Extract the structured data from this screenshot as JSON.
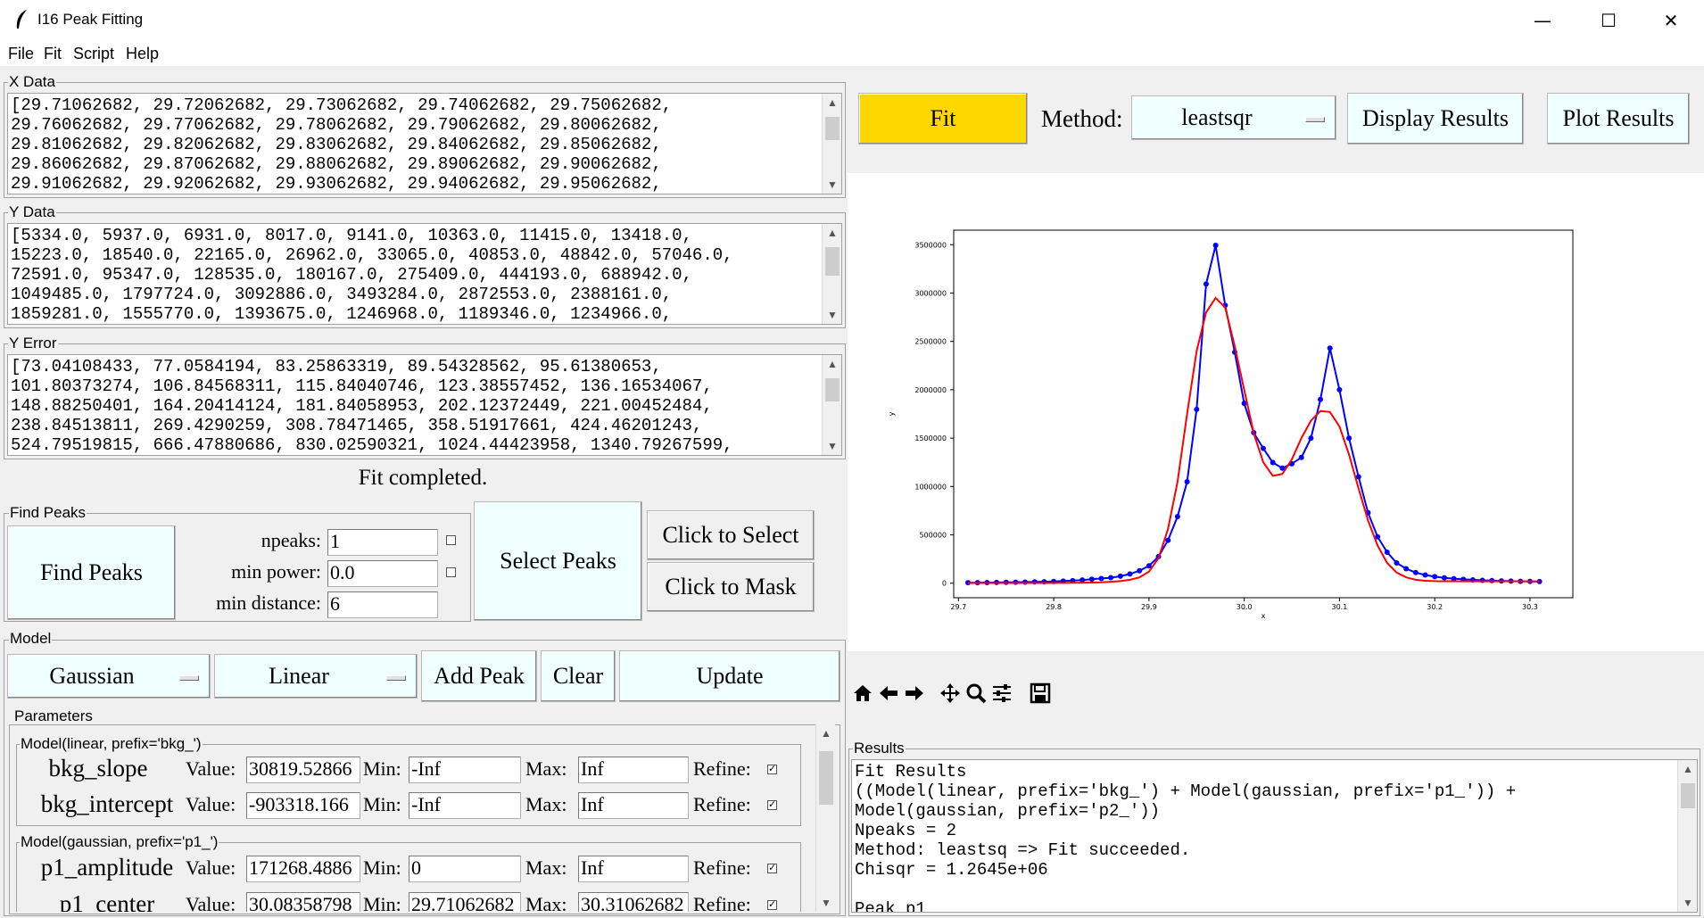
{
  "window": {
    "title": "I16 Peak Fitting",
    "minimize": "—",
    "maximize": "☐",
    "close": "✕"
  },
  "menu": {
    "file": "File",
    "fit": "Fit",
    "script": "Script",
    "help": "Help"
  },
  "xdata": {
    "label": "X Data",
    "text": "[29.71062682, 29.72062682, 29.73062682, 29.74062682, 29.75062682,\n29.76062682, 29.77062682, 29.78062682, 29.79062682, 29.80062682,\n29.81062682, 29.82062682, 29.83062682, 29.84062682, 29.85062682,\n29.86062682, 29.87062682, 29.88062682, 29.89062682, 29.90062682,\n29.91062682, 29.92062682, 29.93062682, 29.94062682, 29.95062682,"
  },
  "ydata": {
    "label": "Y Data",
    "text": "[5334.0, 5937.0, 6931.0, 8017.0, 9141.0, 10363.0, 11415.0, 13418.0,\n15223.0, 18540.0, 22165.0, 26962.0, 33065.0, 40853.0, 48842.0, 57046.0,\n72591.0, 95347.0, 128535.0, 180167.0, 275409.0, 444193.0, 688942.0,\n1049485.0, 1797724.0, 3092886.0, 3493284.0, 2872553.0, 2388161.0,\n1859281.0, 1555770.0, 1393675.0, 1246968.0, 1189346.0, 1234966.0,"
  },
  "yerror": {
    "label": "Y Error",
    "text": "[73.04108433, 77.0584194, 83.25863319, 89.54328562, 95.61380653,\n101.80373274, 106.84568311, 115.84040746, 123.38557452, 136.16534067,\n148.88250401, 164.20414124, 181.84058953, 202.12372449, 221.00452484,\n238.84513811, 269.4290259, 308.78471465, 358.51917661, 424.46201243,\n524.79519815, 666.47880686, 830.02590321, 1024.44423958, 1340.79267599,"
  },
  "status": "Fit completed.",
  "find_peaks": {
    "label": "Find Peaks",
    "button": "Find Peaks",
    "npeaks_label": "npeaks:",
    "npeaks": "1",
    "min_power_label": "min power:",
    "min_power": "0.0",
    "min_distance_label": "min distance:",
    "min_distance": "6",
    "select_peaks": "Select Peaks",
    "click_select": "Click to Select",
    "click_mask": "Click to Mask"
  },
  "model": {
    "label": "Model",
    "peak_model": "Gaussian",
    "bkg_model": "Linear",
    "add_peak": "Add Peak",
    "clear": "Clear",
    "update": "Update"
  },
  "parameters": {
    "label": "Parameters",
    "value_label": "Value:",
    "min_label": "Min:",
    "max_label": "Max:",
    "refine_label": "Refine:",
    "groups": [
      {
        "title": "Model(linear, prefix='bkg_')",
        "rows": [
          {
            "name": "bkg_slope",
            "value": "30819.52866",
            "min": "-Inf",
            "max": "Inf"
          },
          {
            "name": "bkg_intercept",
            "value": "-903318.166",
            "min": "-Inf",
            "max": "Inf"
          }
        ]
      },
      {
        "title": "Model(gaussian, prefix='p1_')",
        "rows": [
          {
            "name": "p1_amplitude",
            "value": "171268.4886",
            "min": "0",
            "max": "Inf"
          },
          {
            "name": "p1_center",
            "value": "30.08358798",
            "min": "29.71062682",
            "max": "30.31062682"
          }
        ]
      }
    ]
  },
  "toolbar": {
    "fit": "Fit",
    "method_label": "Method:",
    "method": "leastsqr",
    "display_results": "Display Results",
    "plot_results": "Plot Results"
  },
  "results": {
    "label": "Results",
    "text": "Fit Results\n((Model(linear, prefix='bkg_') + Model(gaussian, prefix='p1_')) +\nModel(gaussian, prefix='p2_'))\nNpeaks = 2\nMethod: leastsq => Fit succeeded.\nChisqr = 1.2645e+06\n\nPeak_p1"
  },
  "nav_icons": [
    "home-icon",
    "back-icon",
    "forward-icon",
    "pan-icon",
    "zoom-icon",
    "configure-icon",
    "save-icon"
  ],
  "colors": {
    "data": "#0000ff",
    "fit": "#ff0000",
    "fit_button": "#ffd700",
    "button_bg": "#f0ffff"
  },
  "chart_data": {
    "type": "line",
    "xlabel": "x",
    "ylabel": "y",
    "xlim": [
      29.695,
      30.345
    ],
    "ylim": [
      -150000,
      3650000
    ],
    "xticks": [
      29.7,
      29.8,
      29.9,
      30.0,
      30.1,
      30.2,
      30.3
    ],
    "yticks": [
      0,
      500000,
      1000000,
      1500000,
      2000000,
      2500000,
      3000000,
      3500000
    ],
    "series": [
      {
        "role": "data",
        "marker": "o",
        "color": "#0000ff",
        "x": [
          29.71,
          29.72,
          29.73,
          29.74,
          29.75,
          29.76,
          29.77,
          29.78,
          29.79,
          29.8,
          29.81,
          29.82,
          29.83,
          29.84,
          29.85,
          29.86,
          29.87,
          29.88,
          29.89,
          29.9,
          29.91,
          29.92,
          29.93,
          29.94,
          29.95,
          29.96,
          29.97,
          29.98,
          29.99,
          30.0,
          30.01,
          30.02,
          30.03,
          30.04,
          30.05,
          30.06,
          30.07,
          30.08,
          30.09,
          30.1,
          30.11,
          30.12,
          30.13,
          30.14,
          30.15,
          30.16,
          30.17,
          30.18,
          30.19,
          30.2,
          30.21,
          30.22,
          30.23,
          30.24,
          30.25,
          30.26,
          30.27,
          30.28,
          30.29,
          30.3,
          30.31
        ],
        "y": [
          5334,
          5937,
          6931,
          8017,
          9141,
          10363,
          11415,
          13418,
          15223,
          18540,
          22165,
          26962,
          33065,
          40853,
          48842,
          57046,
          72591,
          95347,
          128535,
          180167,
          275409,
          444193,
          688942,
          1049485,
          1797724,
          3092886,
          3493284,
          2872553,
          2388161,
          1859281,
          1555770,
          1393675,
          1246968,
          1189346,
          1234966,
          1300000,
          1500000,
          1900000,
          2430000,
          2000000,
          1500000,
          1100000,
          730000,
          480000,
          320000,
          210000,
          150000,
          110000,
          85000,
          68000,
          56000,
          47000,
          40000,
          35000,
          30000,
          27000,
          24000,
          22000,
          20000,
          18500,
          17000
        ]
      },
      {
        "role": "fit",
        "color": "#ff0000",
        "x": [
          29.71,
          29.72,
          29.73,
          29.74,
          29.75,
          29.76,
          29.77,
          29.78,
          29.79,
          29.8,
          29.81,
          29.82,
          29.83,
          29.84,
          29.85,
          29.86,
          29.87,
          29.88,
          29.89,
          29.9,
          29.91,
          29.92,
          29.93,
          29.94,
          29.95,
          29.96,
          29.97,
          29.98,
          29.99,
          30.0,
          30.01,
          30.02,
          30.03,
          30.04,
          30.05,
          30.06,
          30.07,
          30.08,
          30.09,
          30.1,
          30.11,
          30.12,
          30.13,
          30.14,
          30.15,
          30.16,
          30.17,
          30.18,
          30.19,
          30.2,
          30.21,
          30.22,
          30.23,
          30.24,
          30.25,
          30.26,
          30.27,
          30.28,
          30.29,
          30.3,
          30.31
        ],
        "y": [
          2000,
          2000,
          2000,
          2000,
          2000,
          2000,
          2000,
          2000,
          2000,
          3000,
          3000,
          4000,
          5000,
          7000,
          10000,
          15000,
          22000,
          35000,
          60000,
          120000,
          260000,
          560000,
          1050000,
          1750000,
          2400000,
          2800000,
          2950000,
          2850000,
          2450000,
          2000000,
          1550000,
          1250000,
          1110000,
          1130000,
          1280000,
          1500000,
          1680000,
          1780000,
          1770000,
          1620000,
          1330000,
          980000,
          650000,
          390000,
          210000,
          110000,
          60000,
          35000,
          25000,
          22000,
          21000,
          20500,
          20000,
          20000,
          20000,
          20000,
          20000,
          20000,
          20000,
          20000,
          20000
        ]
      }
    ]
  }
}
